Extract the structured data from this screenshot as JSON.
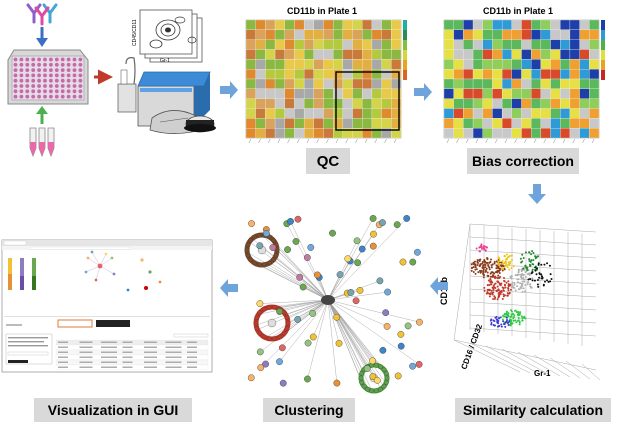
{
  "stages": {
    "qc": "QC",
    "bias_correction": "Bias correction",
    "similarity_calculation": "Similarity calculation",
    "clustering": "Clustering",
    "visualization": "Visualization in GUI"
  },
  "heatmaps": {
    "qc_title": "CD11b in Plate 1",
    "bias_title": "CD11b in Plate 1"
  },
  "flow_plot": {
    "y_label": "CD45/CD11",
    "x_label": "Gr-1"
  },
  "scatter3d": {
    "axis_y": "CD11b",
    "axis_z": "CD16 / CD32",
    "axis_x": "Gr-1"
  },
  "colors": {
    "arrow_blue": "#6fa3dc",
    "arrow_red": "#c0392b",
    "arrow_green": "#4caf50",
    "label_bg": "#d9d9d9"
  }
}
